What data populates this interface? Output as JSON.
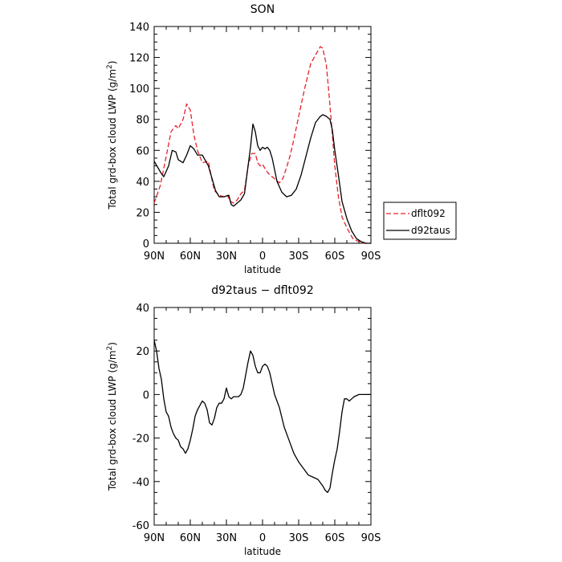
{
  "chart_data": [
    {
      "type": "line",
      "title": "SON",
      "xlabel": "latitude",
      "ylabel": "Total grd-box cloud LWP (g/m",
      "ylabel_sup": "2",
      "ylabel_close": ")",
      "x_ticks": [
        90,
        60,
        30,
        0,
        -30,
        -60,
        -90
      ],
      "x_tick_labels": [
        "90N",
        "60N",
        "30N",
        "0",
        "30S",
        "60S",
        "90S"
      ],
      "xlim": [
        90,
        -90
      ],
      "ylim": [
        0,
        140
      ],
      "y_ticks": [
        0,
        20,
        40,
        60,
        80,
        100,
        120,
        140
      ],
      "legend_position": "right",
      "series": [
        {
          "name": "dflt092",
          "color": "#e8222a",
          "dash": "dashed",
          "x": [
            90,
            85,
            80,
            76,
            72,
            70,
            66,
            63,
            60,
            57,
            54,
            50,
            45,
            42,
            40,
            36,
            32,
            29,
            27,
            24,
            21,
            18,
            15,
            12,
            9,
            6,
            4,
            2,
            0,
            -3,
            -5,
            -8,
            -11,
            -14,
            -17,
            -20,
            -23,
            -26,
            -30,
            -35,
            -40,
            -45,
            -48,
            -50,
            -53,
            -55,
            -58,
            -60,
            -63,
            -66,
            -70,
            -75,
            -80,
            -85,
            -90
          ],
          "y": [
            26,
            37,
            56,
            72,
            76,
            74,
            80,
            90,
            86,
            70,
            60,
            52,
            53,
            41,
            34,
            31,
            30,
            31,
            27,
            26,
            28,
            32,
            34,
            50,
            58,
            58,
            52,
            50,
            51,
            47,
            45,
            43,
            41,
            39,
            42,
            49,
            57,
            67,
            82,
            100,
            116,
            123,
            127,
            126,
            115,
            98,
            70,
            50,
            30,
            17,
            10,
            3,
            1,
            0,
            0
          ]
        },
        {
          "name": "d92taus",
          "color": "#000000",
          "dash": "solid",
          "x": [
            90,
            87,
            84,
            82,
            78,
            75,
            72,
            70,
            66,
            63,
            60,
            57,
            54,
            50,
            45,
            42,
            39,
            36,
            32,
            28,
            26,
            24,
            21,
            18,
            15,
            12,
            10,
            8,
            6,
            4,
            2,
            0,
            -2,
            -4,
            -6,
            -8,
            -12,
            -16,
            -20,
            -24,
            -28,
            -32,
            -36,
            -40,
            -44,
            -48,
            -50,
            -53,
            -56,
            -58,
            -60,
            -63,
            -66,
            -70,
            -74,
            -78,
            -82,
            -86,
            -90
          ],
          "y": [
            53,
            49,
            45,
            43,
            50,
            60,
            59,
            54,
            52,
            57,
            63,
            61,
            57,
            57,
            50,
            42,
            34,
            30,
            30,
            31,
            25,
            24,
            26,
            28,
            32,
            50,
            62,
            77,
            72,
            63,
            60,
            62,
            61,
            62,
            60,
            55,
            40,
            33,
            30,
            31,
            35,
            44,
            56,
            68,
            78,
            82,
            83,
            82,
            80,
            73,
            60,
            44,
            27,
            16,
            8,
            3,
            1,
            0,
            0
          ]
        }
      ]
    },
    {
      "type": "line",
      "title": "d92taus − dflt092",
      "xlabel": "latitude",
      "ylabel": "Total grd-box cloud LWP (g/m",
      "ylabel_sup": "2",
      "ylabel_close": ")",
      "x_ticks": [
        90,
        60,
        30,
        0,
        -30,
        -60,
        -90
      ],
      "x_tick_labels": [
        "90N",
        "60N",
        "30N",
        "0",
        "30S",
        "60S",
        "90S"
      ],
      "xlim": [
        90,
        -90
      ],
      "ylim": [
        -60,
        40
      ],
      "y_ticks": [
        -60,
        -40,
        -20,
        0,
        20,
        40
      ],
      "series": [
        {
          "color": "#000000",
          "dash": "solid",
          "x": [
            90,
            88,
            86,
            84,
            82,
            80,
            78,
            76,
            74,
            72,
            70,
            68,
            66,
            64,
            62,
            60,
            58,
            56,
            54,
            52,
            50,
            48,
            46,
            44,
            42,
            40,
            38,
            36,
            34,
            32,
            30,
            28,
            26,
            24,
            22,
            20,
            18,
            16,
            14,
            12,
            10,
            8,
            6,
            4,
            2,
            0,
            -2,
            -4,
            -6,
            -8,
            -10,
            -14,
            -18,
            -22,
            -26,
            -30,
            -34,
            -38,
            -42,
            -46,
            -50,
            -52,
            -54,
            -56,
            -58,
            -60,
            -62,
            -64,
            -66,
            -68,
            -70,
            -72,
            -74,
            -76,
            -80,
            -84,
            -90
          ],
          "y": [
            25,
            20,
            12,
            7,
            -2,
            -8,
            -10,
            -15,
            -18,
            -20,
            -21,
            -24,
            -25,
            -27,
            -25,
            -21,
            -16,
            -10,
            -7,
            -5,
            -3,
            -4,
            -7,
            -13,
            -14,
            -11,
            -6,
            -4,
            -4,
            -2,
            3,
            -1,
            -2,
            -1,
            -1,
            -1,
            0,
            3,
            9,
            15,
            20,
            18,
            13,
            10,
            10,
            13,
            14,
            13,
            10,
            5,
            0,
            -6,
            -15,
            -21,
            -27,
            -31,
            -34,
            -37,
            -38,
            -39,
            -42,
            -44,
            -45,
            -43,
            -36,
            -30,
            -25,
            -17,
            -8,
            -2,
            -2,
            -3,
            -2,
            -1,
            0,
            0,
            0
          ]
        }
      ]
    }
  ]
}
